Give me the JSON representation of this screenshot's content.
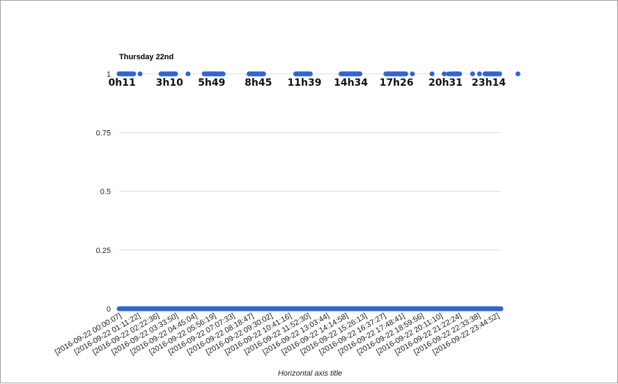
{
  "chart_data": {
    "type": "scatter",
    "title": "Thursday 22nd",
    "xlabel": "Horizontal axis title",
    "ylabel": "",
    "ylim": [
      0,
      1
    ],
    "grid": true,
    "legend": "none",
    "series_color": "#3366cc",
    "y_ticks": [
      "1",
      "0.75",
      "0.5",
      "0.25",
      "0"
    ],
    "x_ticks": [
      "[2016-09-22 00:00:07]",
      "[2016-09-22 01:11:22]",
      "[2016-09-22 02:22:36]",
      "[2016-09-22 03:33:50]",
      "[2016-09-22 04:45:04]",
      "[2016-09-22 05:56:19]",
      "[2016-09-22 07:07:33]",
      "[2016-09-22 08:18:47]",
      "[2016-09-22 09:30:02]",
      "[2016-09-22 10:41:16]",
      "[2016-09-22 11:52:30]",
      "[2016-09-22 13:03:44]",
      "[2016-09-22 14:14:58]",
      "[2016-09-22 15:26:13]",
      "[2016-09-22 16:37:27]",
      "[2016-09-22 17:48:41]",
      "[2016-09-22 18:59:56]",
      "[2016-09-22 20:11:10]",
      "[2016-09-22 21:22:24]",
      "[2016-09-22 22:33:38]",
      "[2016-09-22 23:44:52]"
    ],
    "x_range": [
      "2016-09-22 00:00:07",
      "2016-09-22 23:59:59"
    ],
    "baseline": {
      "y": 0,
      "x_range": [
        "2016-09-22 00:00:07",
        "2016-09-22 23:59:59"
      ]
    },
    "on_intervals": [
      [
        "2016-09-22 00:00",
        "2016-09-22 00:55"
      ],
      [
        "2016-09-22 02:38",
        "2016-09-22 03:33"
      ],
      [
        "2016-09-22 05:21",
        "2016-09-22 06:32"
      ],
      [
        "2016-09-22 08:10",
        "2016-09-22 09:05"
      ],
      [
        "2016-09-22 11:06",
        "2016-09-22 12:01"
      ],
      [
        "2016-09-22 13:57",
        "2016-09-22 15:08"
      ],
      [
        "2016-09-22 16:46",
        "2016-09-22 18:01"
      ],
      [
        "2016-09-22 21:00",
        "2016-09-22 21:19"
      ],
      [
        "2016-09-22 23:00",
        "2016-09-22 23:55"
      ]
    ],
    "on_points": [
      "2016-09-22 01:19",
      "2016-09-22 04:20",
      "2016-09-22 18:26",
      "2016-09-22 19:40",
      "2016-09-22 20:26",
      "2016-09-22 20:42",
      "2016-09-22 20:52",
      "2016-09-22 21:24",
      "2016-09-22 22:13",
      "2016-09-22 22:39",
      "2016-09-22 25:04"
    ],
    "annotations": [
      {
        "label": "0h11",
        "x": "2016-09-22 00:11"
      },
      {
        "label": "3h10",
        "x": "2016-09-22 03:10"
      },
      {
        "label": "5h49",
        "x": "2016-09-22 05:49"
      },
      {
        "label": "8h45",
        "x": "2016-09-22 08:45"
      },
      {
        "label": "11h39",
        "x": "2016-09-22 11:39"
      },
      {
        "label": "14h34",
        "x": "2016-09-22 14:34"
      },
      {
        "label": "17h26",
        "x": "2016-09-22 17:26"
      },
      {
        "label": "20h31",
        "x": "2016-09-22 20:31"
      },
      {
        "label": "23h14",
        "x": "2016-09-22 23:14"
      }
    ]
  }
}
